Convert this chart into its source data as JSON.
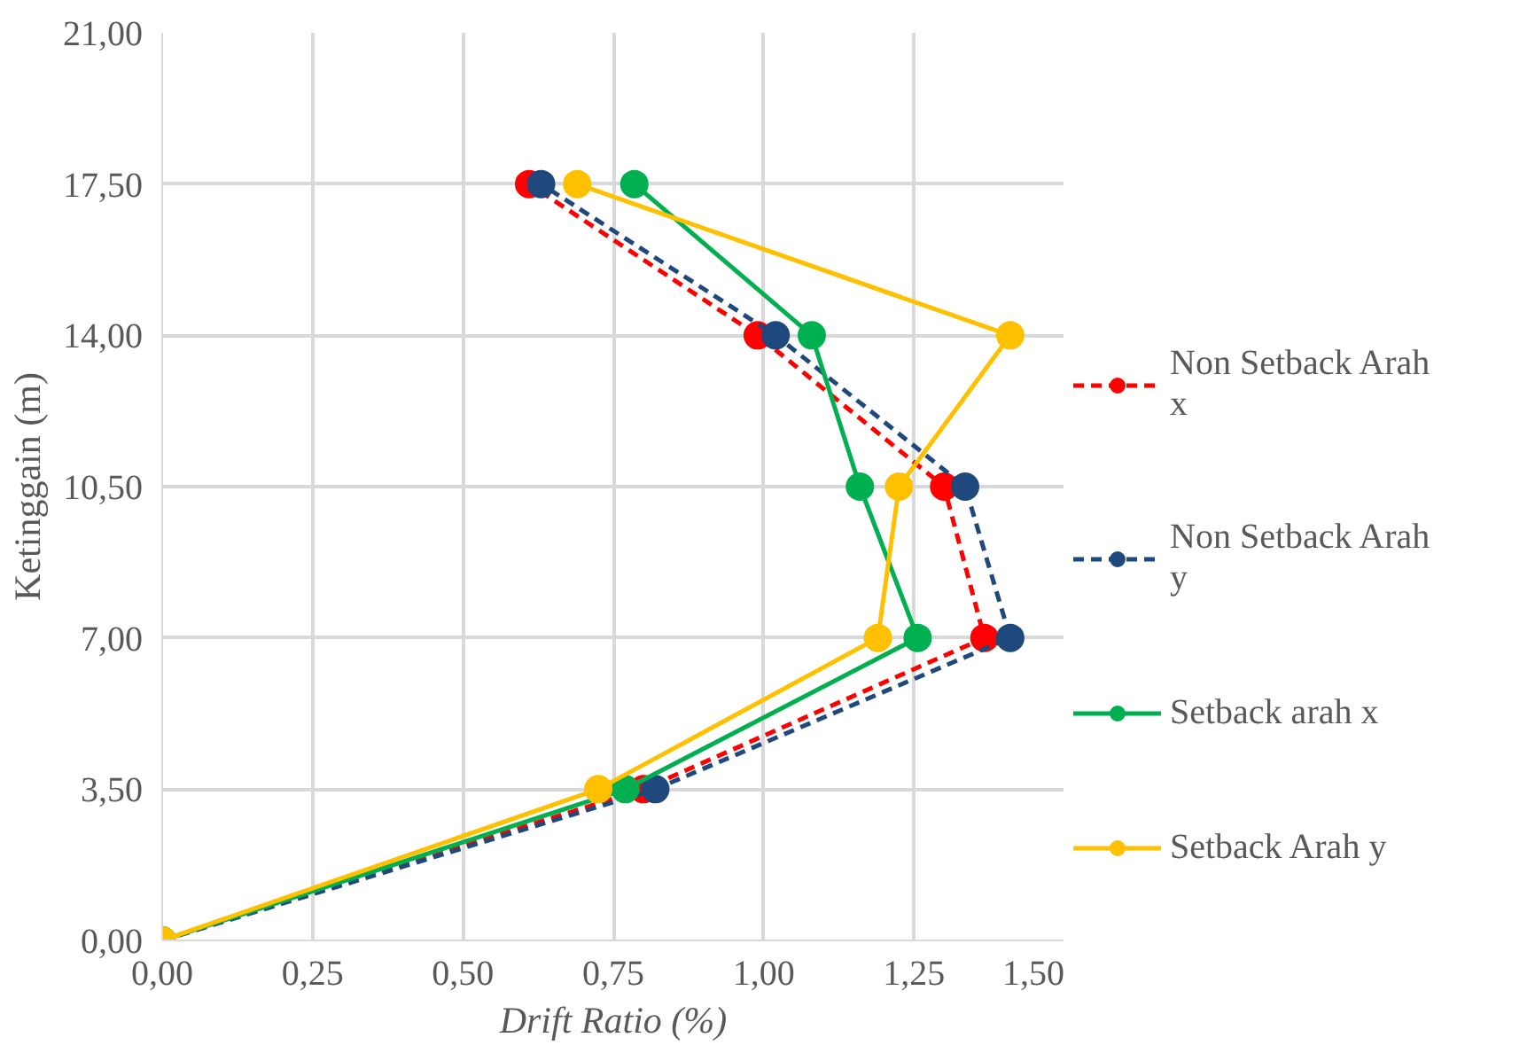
{
  "chart_data": {
    "type": "line",
    "xlabel": "Drift Ratio (%)",
    "ylabel": "Ketinggain (m)",
    "xlim": [
      0,
      1.5
    ],
    "ylim": [
      0,
      21
    ],
    "xticks": [
      {
        "value": 0,
        "label": "0,00"
      },
      {
        "value": 0.25,
        "label": "0,25"
      },
      {
        "value": 0.5,
        "label": "0,50"
      },
      {
        "value": 0.75,
        "label": "0,75"
      },
      {
        "value": 1,
        "label": "1,00"
      },
      {
        "value": 1.25,
        "label": "1,25"
      },
      {
        "value": 1.5,
        "label": "1,50"
      }
    ],
    "yticks": [
      {
        "value": 0,
        "label": "0,00"
      },
      {
        "value": 3.5,
        "label": "3,50"
      },
      {
        "value": 7,
        "label": "7,00"
      },
      {
        "value": 10.5,
        "label": "10,50"
      },
      {
        "value": 14,
        "label": "14,00"
      },
      {
        "value": 17.5,
        "label": "17,50"
      },
      {
        "value": 21,
        "label": "21,00"
      }
    ],
    "grid": true,
    "legend": "right",
    "marker": "circle",
    "series": [
      {
        "name": "Non Setback Arah x",
        "color": "#ff0000",
        "line_style": "dashed",
        "x": [
          0,
          0.8,
          1.367,
          1.3,
          0.99,
          0.61
        ],
        "values": [
          0,
          3.5,
          7,
          10.5,
          14,
          17.5
        ]
      },
      {
        "name": "Non Setback Arah y",
        "color": "#1f497d",
        "line_style": "dashed",
        "x": [
          0,
          0.82,
          1.41,
          1.335,
          1.02,
          0.63
        ],
        "values": [
          0,
          3.5,
          7,
          10.5,
          14,
          17.5
        ]
      },
      {
        "name": "Setback arah x",
        "color": "#00b050",
        "line_style": "solid",
        "x": [
          0,
          0.77,
          1.256,
          1.16,
          1.08,
          0.785
        ],
        "values": [
          0,
          3.5,
          7,
          10.5,
          14,
          17.5
        ]
      },
      {
        "name": "Setback Arah y",
        "color": "#ffc000",
        "line_style": "solid",
        "x": [
          0,
          0.725,
          1.19,
          1.225,
          1.41,
          0.69
        ],
        "values": [
          0,
          3.5,
          7,
          10.5,
          14,
          17.5
        ]
      }
    ]
  }
}
